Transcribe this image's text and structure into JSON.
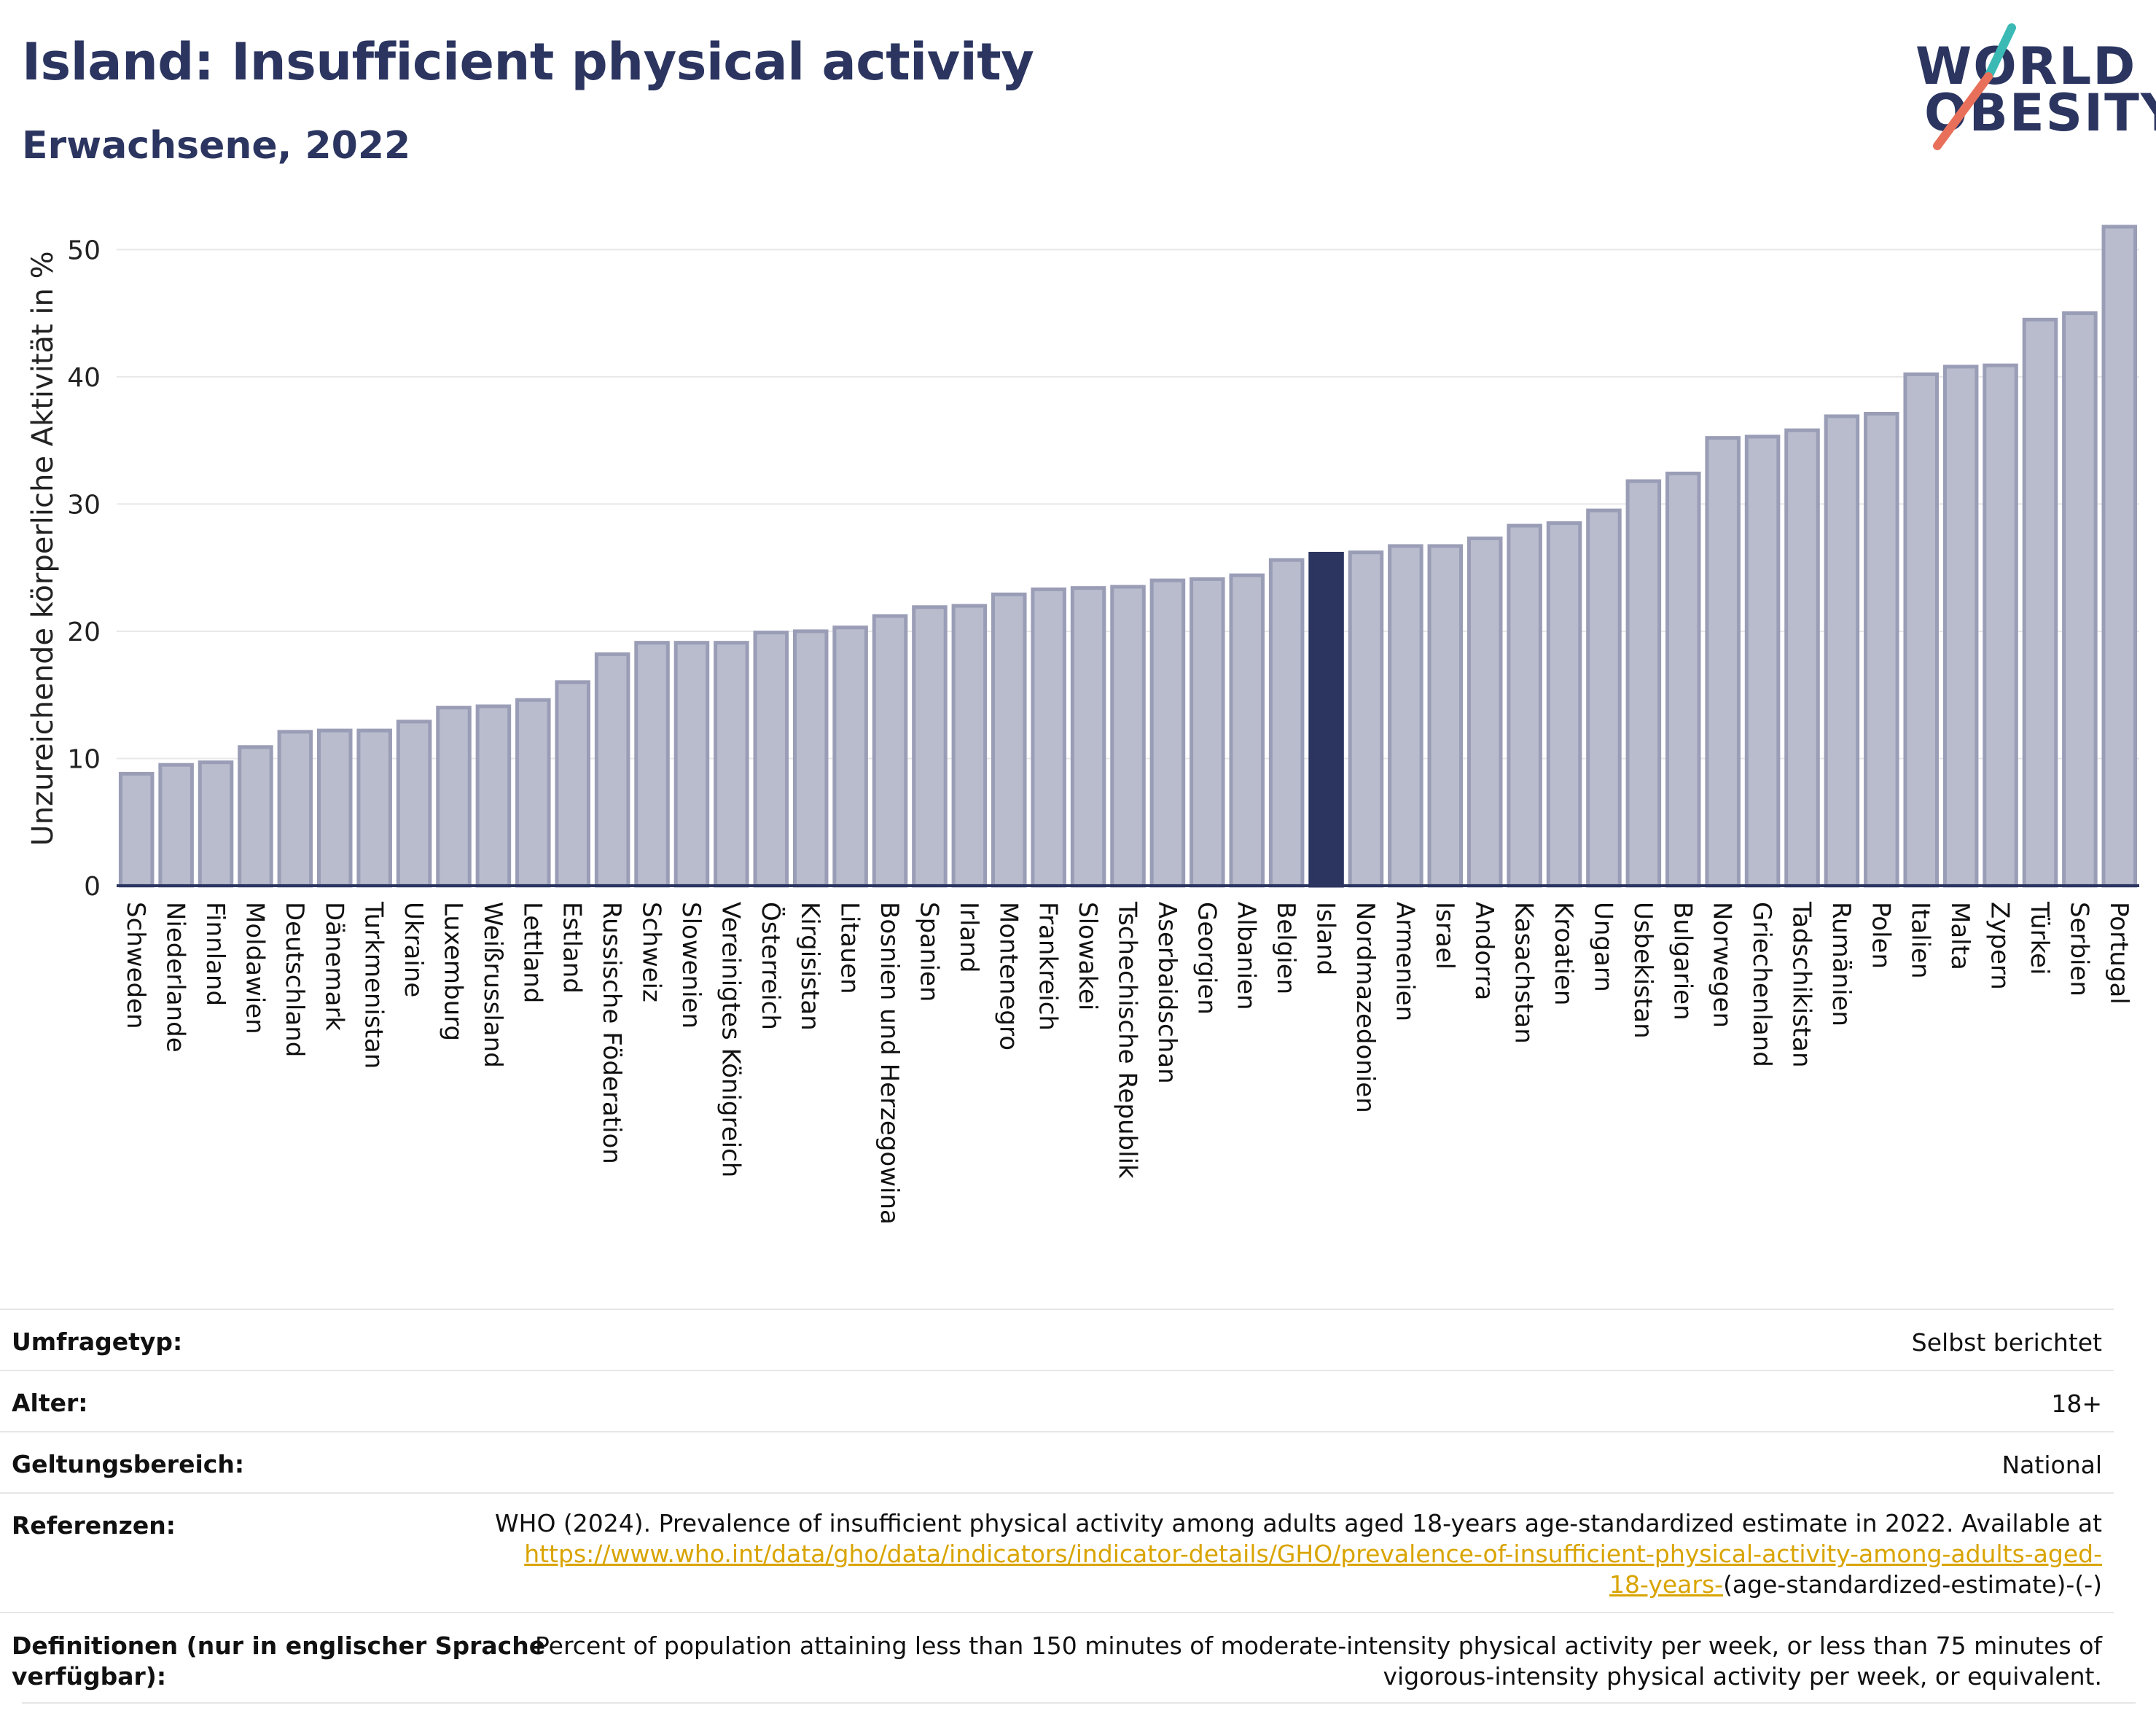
{
  "header": {
    "title": "Island: Insufficient physical activity",
    "subtitle": "Erwachsene, 2022"
  },
  "logo": {
    "line1": "WORLD",
    "line2": "OBESITY",
    "colors": {
      "text": "#2b3560",
      "slash_top": "#3bb9b5",
      "slash_bottom": "#e8705a"
    }
  },
  "colors": {
    "bar_fill": "#b9bccd",
    "bar_stroke": "#9a9db6",
    "highlight": "#2b3560",
    "grid": "#e8e8e8",
    "axis": "#2b3560"
  },
  "chart_data": {
    "type": "bar",
    "ylabel": "Unzureichende körperliche Aktivität in %",
    "xlabel": "",
    "ylim": [
      0,
      53
    ],
    "yticks": [
      0,
      10,
      20,
      30,
      40,
      50
    ],
    "grid": true,
    "highlight_category": "Island",
    "categories": [
      "Schweden",
      "Niederlande",
      "Finnland",
      "Moldawien",
      "Deutschland",
      "Dänemark",
      "Turkmenistan",
      "Ukraine",
      "Luxemburg",
      "Weißrussland",
      "Lettland",
      "Estland",
      "Russische Föderation",
      "Schweiz",
      "Slowenien",
      "Vereinigtes Königreich",
      "Österreich",
      "Kirgisistan",
      "Litauen",
      "Bosnien und Herzegowina",
      "Spanien",
      "Irland",
      "Montenegro",
      "Frankreich",
      "Slowakei",
      "Tschechische Republik",
      "Aserbaidschan",
      "Georgien",
      "Albanien",
      "Belgien",
      "Island",
      "Nordmazedonien",
      "Armenien",
      "Israel",
      "Andorra",
      "Kasachstan",
      "Kroatien",
      "Ungarn",
      "Usbekistan",
      "Bulgarien",
      "Norwegen",
      "Griechenland",
      "Tadschikistan",
      "Rumänien",
      "Polen",
      "Italien",
      "Malta",
      "Zypern",
      "Türkei",
      "Serbien",
      "Portugal"
    ],
    "values": [
      8.8,
      9.5,
      9.7,
      10.9,
      12.1,
      12.2,
      12.2,
      12.9,
      14.0,
      14.1,
      14.6,
      16.0,
      18.2,
      19.1,
      19.1,
      19.1,
      19.9,
      20.0,
      20.3,
      21.2,
      21.9,
      22.0,
      22.9,
      23.3,
      23.4,
      23.5,
      24.0,
      24.1,
      24.4,
      25.6,
      26.1,
      26.2,
      26.7,
      26.7,
      27.3,
      28.3,
      28.5,
      29.5,
      31.8,
      32.4,
      35.2,
      35.3,
      35.8,
      36.9,
      37.1,
      40.2,
      40.8,
      40.9,
      44.5,
      45.0,
      51.8
    ]
  },
  "meta": {
    "rows": [
      {
        "label": "Umfragetyp:",
        "value": "Selbst berichtet"
      },
      {
        "label": "Alter:",
        "value": "18+"
      },
      {
        "label": "Geltungsbereich:",
        "value": "National"
      }
    ],
    "references": {
      "label": "Referenzen:",
      "text": "WHO (2024). Prevalence of insufficient physical activity among adults aged 18-years age-standardized estimate in 2022. Available at",
      "link_line1": "https://www.who.int/data/gho/data/indicators/indicator-details/GHO/prevalence-of-insufficient-physical-activity-among-adults-aged-",
      "link_line2": "18-years-",
      "suffix": "(age-standardized-estimate)-(-)"
    },
    "definitions": {
      "label_line1": "Definitionen (nur in englischer Sprache",
      "label_line2": "verfügbar):",
      "text_line1": "Percent of population attaining less than 150 minutes of moderate-intensity physical activity per week, or less than 75 minutes of",
      "text_line2": "vigorous-intensity physical activity per week, or equivalent."
    }
  }
}
